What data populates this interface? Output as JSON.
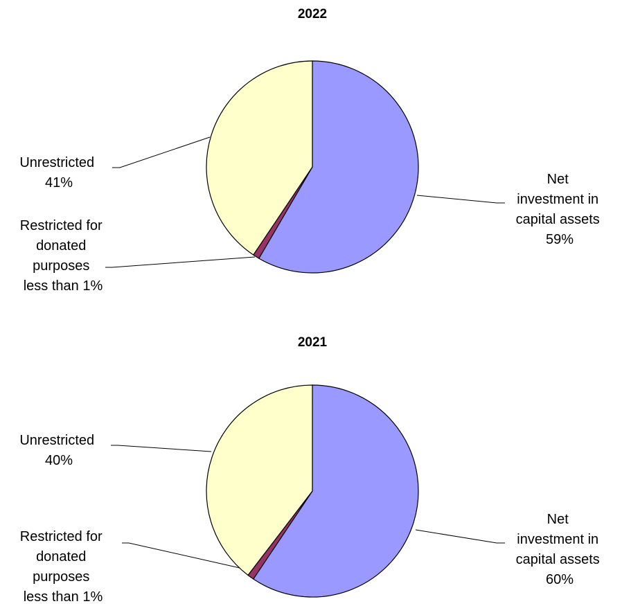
{
  "chart_data": [
    {
      "type": "pie",
      "title": "2022",
      "slices": [
        {
          "name": "Net investment in capital assets",
          "value": 59,
          "color": "#9999ff",
          "label_lines": [
            "Net",
            "investment in",
            "capital assets",
            "59%"
          ]
        },
        {
          "name": "Restricted for donated purposes",
          "value": 1,
          "color": "#993366",
          "label_lines": [
            "Restricted for",
            "donated",
            "purposes",
            "less than 1%"
          ]
        },
        {
          "name": "Unrestricted",
          "value": 41,
          "color": "#ffffcc",
          "label_lines": [
            "Unrestricted",
            "41%"
          ]
        }
      ]
    },
    {
      "type": "pie",
      "title": "2021",
      "slices": [
        {
          "name": "Net investment in capital assets",
          "value": 60,
          "color": "#9999ff",
          "label_lines": [
            "Net",
            "investment in",
            "capital assets",
            "60%"
          ]
        },
        {
          "name": "Restricted for donated purposes",
          "value": 1,
          "color": "#993366",
          "label_lines": [
            "Restricted for",
            "donated",
            "purposes",
            "less than 1%"
          ]
        },
        {
          "name": "Unrestricted",
          "value": 40,
          "color": "#ffffcc",
          "label_lines": [
            "Unrestricted",
            "40%"
          ]
        }
      ]
    }
  ]
}
